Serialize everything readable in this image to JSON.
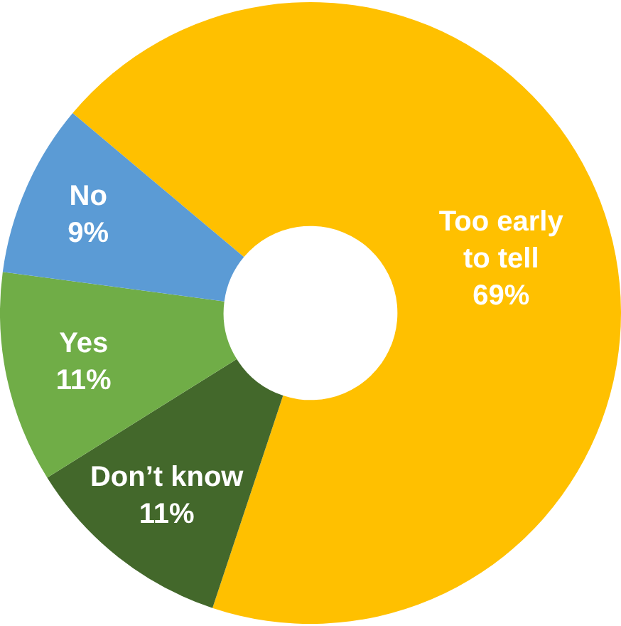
{
  "chart_data": {
    "type": "donut",
    "categories": [
      "Too early to tell",
      "Don’t know",
      "Yes",
      "No"
    ],
    "values": [
      69,
      11,
      11,
      9
    ],
    "value_labels": [
      "69%",
      "11%",
      "11%",
      "9%"
    ],
    "colors": [
      "#ffc000",
      "#43682b",
      "#70ad47",
      "#5b9bd5"
    ],
    "legend": false
  }
}
